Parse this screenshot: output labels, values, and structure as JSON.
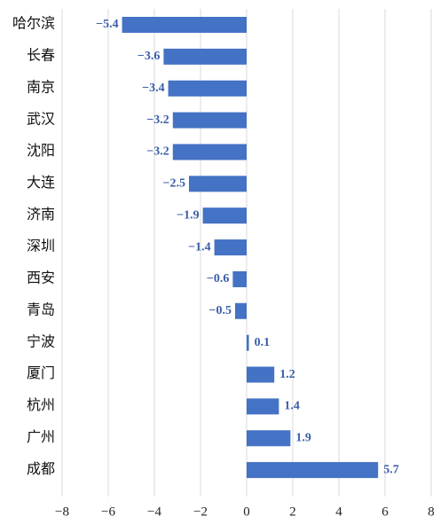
{
  "chart_data": {
    "type": "hbar",
    "categories": [
      "哈尔滨",
      "长春",
      "南京",
      "武汉",
      "沈阳",
      "大连",
      "济南",
      "深圳",
      "西安",
      "青岛",
      "宁波",
      "厦门",
      "杭州",
      "广州",
      "成都"
    ],
    "values": [
      -5.4,
      -3.6,
      -3.4,
      -3.2,
      -3.2,
      -2.5,
      -1.9,
      -1.4,
      -0.6,
      -0.5,
      0.1,
      1.2,
      1.4,
      1.9,
      5.7
    ],
    "value_labels": [
      "−5.4",
      "−3.6",
      "−3.4",
      "−3.2",
      "−3.2",
      "−2.5",
      "−1.9",
      "−1.4",
      "−0.6",
      "−0.5",
      "0.1",
      "1.2",
      "1.4",
      "1.9",
      "5.7"
    ],
    "color": "#4472c4",
    "xlim": [
      -8,
      8
    ],
    "xticks": [
      {
        "value": -8,
        "label": "−8"
      },
      {
        "value": -6,
        "label": "−6"
      },
      {
        "value": -4,
        "label": "−4"
      },
      {
        "value": -2,
        "label": "−2"
      },
      0,
      2,
      4,
      6,
      8
    ],
    "grid": true
  }
}
